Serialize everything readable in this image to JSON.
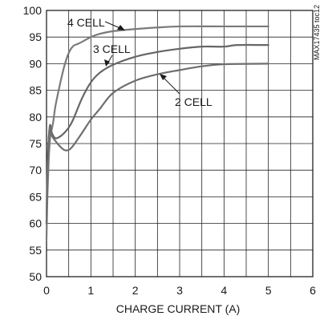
{
  "chart_data": {
    "type": "line",
    "title": "",
    "xlabel": "CHARGE CURRENT (A)",
    "ylabel": "",
    "xlim": [
      0,
      6
    ],
    "ylim": [
      50,
      100
    ],
    "xticks": [
      "0",
      "1",
      "2",
      "3",
      "4",
      "5",
      "6"
    ],
    "yticks": [
      "50",
      "55",
      "60",
      "65",
      "70",
      "75",
      "80",
      "85",
      "90",
      "95",
      "100"
    ],
    "grid": true,
    "side_note": "MAX17435 toc12",
    "series": [
      {
        "name": "4 CELL",
        "x": [
          0,
          0.02,
          0.05,
          0.08,
          0.1,
          0.15,
          0.2,
          0.3,
          0.4,
          0.5,
          0.6,
          0.7,
          0.8,
          1.0,
          1.2,
          1.5,
          2.0,
          2.5,
          3.0,
          4.0,
          5.0
        ],
        "y": [
          57,
          65,
          72,
          76,
          77,
          79,
          82,
          86,
          89.5,
          92,
          93.3,
          93.7,
          94.1,
          95.0,
          95.6,
          96.1,
          96.5,
          96.8,
          97.0,
          97.0,
          97.0
        ]
      },
      {
        "name": "3 CELL",
        "x": [
          0,
          0.02,
          0.05,
          0.08,
          0.12,
          0.2,
          0.3,
          0.4,
          0.5,
          0.6,
          0.8,
          1.0,
          1.2,
          1.5,
          2.0,
          2.5,
          3.0,
          3.5,
          4.0,
          4.3,
          5.0
        ],
        "y": [
          60,
          70,
          76,
          78.5,
          77,
          76,
          76.3,
          77,
          78,
          79.5,
          83.5,
          86.5,
          88.3,
          89.8,
          91.3,
          92.2,
          92.8,
          93.2,
          93.2,
          93.5,
          93.5
        ]
      },
      {
        "name": "2 CELL",
        "x": [
          0,
          0.02,
          0.05,
          0.08,
          0.12,
          0.2,
          0.3,
          0.4,
          0.5,
          0.6,
          0.8,
          1.0,
          1.2,
          1.5,
          2.0,
          2.5,
          3.0,
          3.5,
          4.0,
          5.0
        ],
        "y": [
          60,
          70,
          76,
          78,
          76.5,
          75.5,
          74.5,
          73.8,
          73.8,
          74.6,
          77,
          79.5,
          81.5,
          84.5,
          86.8,
          88,
          88.8,
          89.5,
          89.9,
          90.0
        ]
      }
    ],
    "annotations": [
      "4 CELL",
      "3 CELL",
      "2 CELL"
    ]
  }
}
